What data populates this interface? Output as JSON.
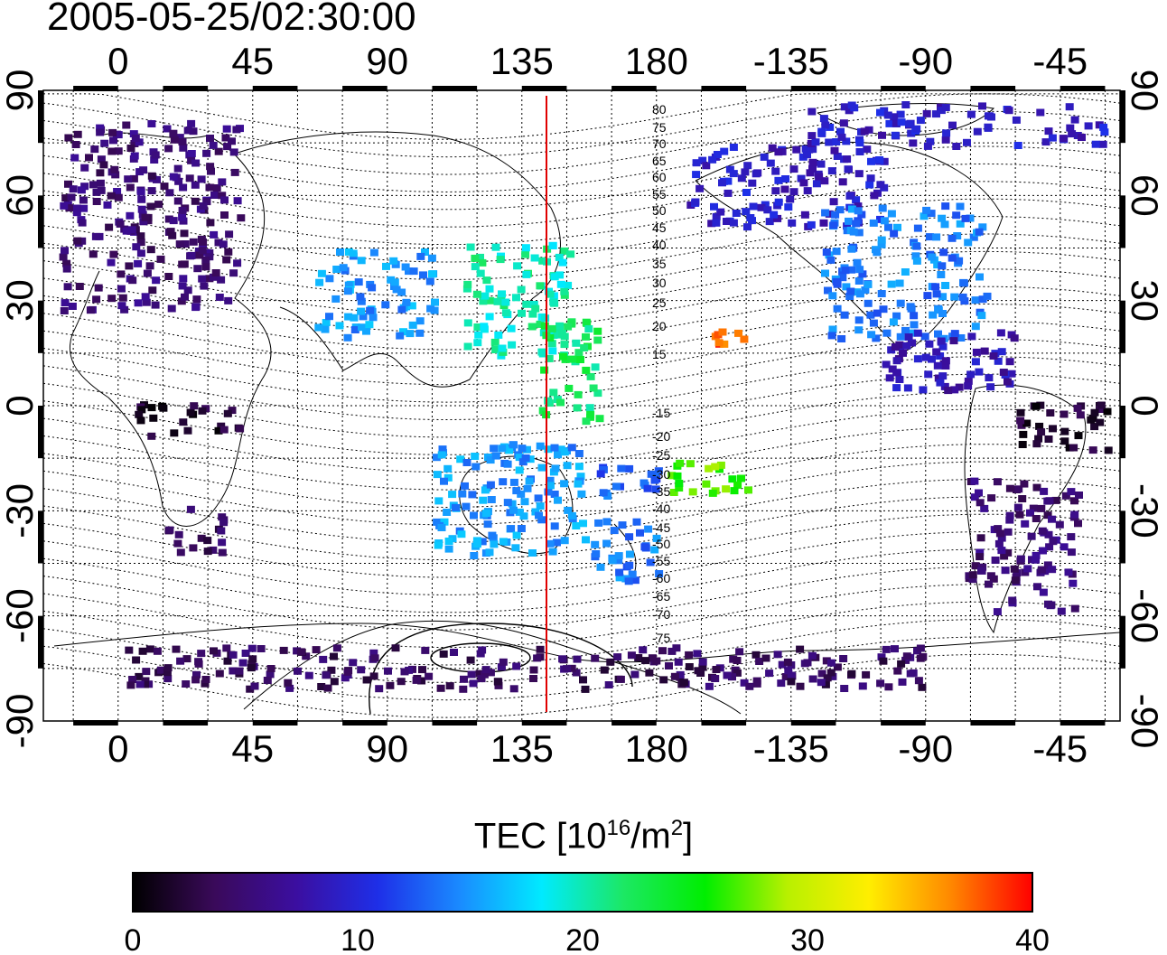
{
  "title": "2005-05-25/02:30:00",
  "top_axis_labels": [
    "0",
    "45",
    "90",
    "135",
    "180",
    "-135",
    "-90",
    "-45"
  ],
  "bottom_axis_labels": [
    "0",
    "45",
    "90",
    "135",
    "180",
    "-135",
    "-90",
    "-45"
  ],
  "left_axis_labels": [
    "90",
    "60",
    "30",
    "0",
    "-30",
    "-60",
    "-90"
  ],
  "right_axis_labels": [
    "90",
    "60",
    "30",
    "0",
    "-30",
    "-60",
    "-90"
  ],
  "meridian_labels": [
    "80",
    "75",
    "70",
    "65",
    "60",
    "55",
    "50",
    "45",
    "40",
    "35",
    "30",
    "25",
    "20",
    "15",
    "-15",
    "-20",
    "-25",
    "-30",
    "-35",
    "-40",
    "-45",
    "-50",
    "-55",
    "-60",
    "-65",
    "-70",
    "-75"
  ],
  "colorbar": {
    "title_main": "TEC  [10",
    "title_exp1": "16",
    "title_mid": "/m",
    "title_exp2": "2",
    "title_end": "]",
    "tick_labels": [
      "0",
      "10",
      "20",
      "30",
      "40"
    ],
    "stops": [
      "#000000",
      "#3a0a5a",
      "#3b0ea0",
      "#1e2fe8",
      "#1a8bff",
      "#00eaff",
      "#1ce864",
      "#00ee00",
      "#b8f000",
      "#ffee00",
      "#ff8800",
      "#ff0000"
    ]
  },
  "chart_data": {
    "type": "heatmap",
    "title": "2005-05-25/02:30:00",
    "xlim": [
      -25,
      335
    ],
    "ylim": [
      -90,
      90
    ],
    "x_ticks": [
      0,
      45,
      90,
      135,
      180,
      225,
      270,
      315
    ],
    "y_ticks": [
      90,
      60,
      30,
      0,
      -30,
      -60,
      -90
    ],
    "colorbar_range": [
      0,
      40
    ],
    "colorbar_ticks": [
      0,
      10,
      20,
      30,
      40
    ],
    "local_noon_meridian_lon": 142.5,
    "regions": [
      {
        "lon": [
          -20,
          40
        ],
        "lat": [
          28,
          82
        ],
        "tec": 5
      },
      {
        "lon": [
          15,
          35
        ],
        "lat": [
          -42,
          -28
        ],
        "tec": 4
      },
      {
        "lon": [
          5,
          40
        ],
        "lat": [
          -8,
          2
        ],
        "tec": 2
      },
      {
        "lon": [
          65,
          105
        ],
        "lat": [
          20,
          45
        ],
        "tec": 15
      },
      {
        "lon": [
          115,
          150
        ],
        "lat": [
          15,
          48
        ],
        "tec": 20
      },
      {
        "lon": [
          140,
          160
        ],
        "lat": [
          -5,
          25
        ],
        "tec": 22
      },
      {
        "lon": [
          105,
          155
        ],
        "lat": [
          -42,
          -10
        ],
        "tec": 15
      },
      {
        "lon": [
          158,
          180
        ],
        "lat": [
          -50,
          -32
        ],
        "tec": 14
      },
      {
        "lon": [
          160,
          180
        ],
        "lat": [
          -25,
          -15
        ],
        "tec": 13
      },
      {
        "lon": [
          198,
          208
        ],
        "lat": [
          18,
          28
        ],
        "tec": 38
      },
      {
        "lon": [
          182,
          210
        ],
        "lat": [
          -25,
          -15
        ],
        "tec": 27
      },
      {
        "lon": [
          190,
          255
        ],
        "lat": [
          52,
          75
        ],
        "tec": 9
      },
      {
        "lon": [
          235,
          290
        ],
        "lat": [
          20,
          58
        ],
        "tec": 14
      },
      {
        "lon": [
          255,
          300
        ],
        "lat": [
          5,
          22
        ],
        "tec": 8
      },
      {
        "lon": [
          283,
          320
        ],
        "lat": [
          -58,
          -20
        ],
        "tec": 5
      },
      {
        "lon": [
          300,
          330
        ],
        "lat": [
          -12,
          2
        ],
        "tec": 2
      },
      {
        "lon": [
          230,
          330
        ],
        "lat": [
          75,
          87
        ],
        "tec": 9
      },
      {
        "lon": [
          0,
          270
        ],
        "lat": [
          -80,
          -68
        ],
        "tec": 4
      }
    ]
  }
}
